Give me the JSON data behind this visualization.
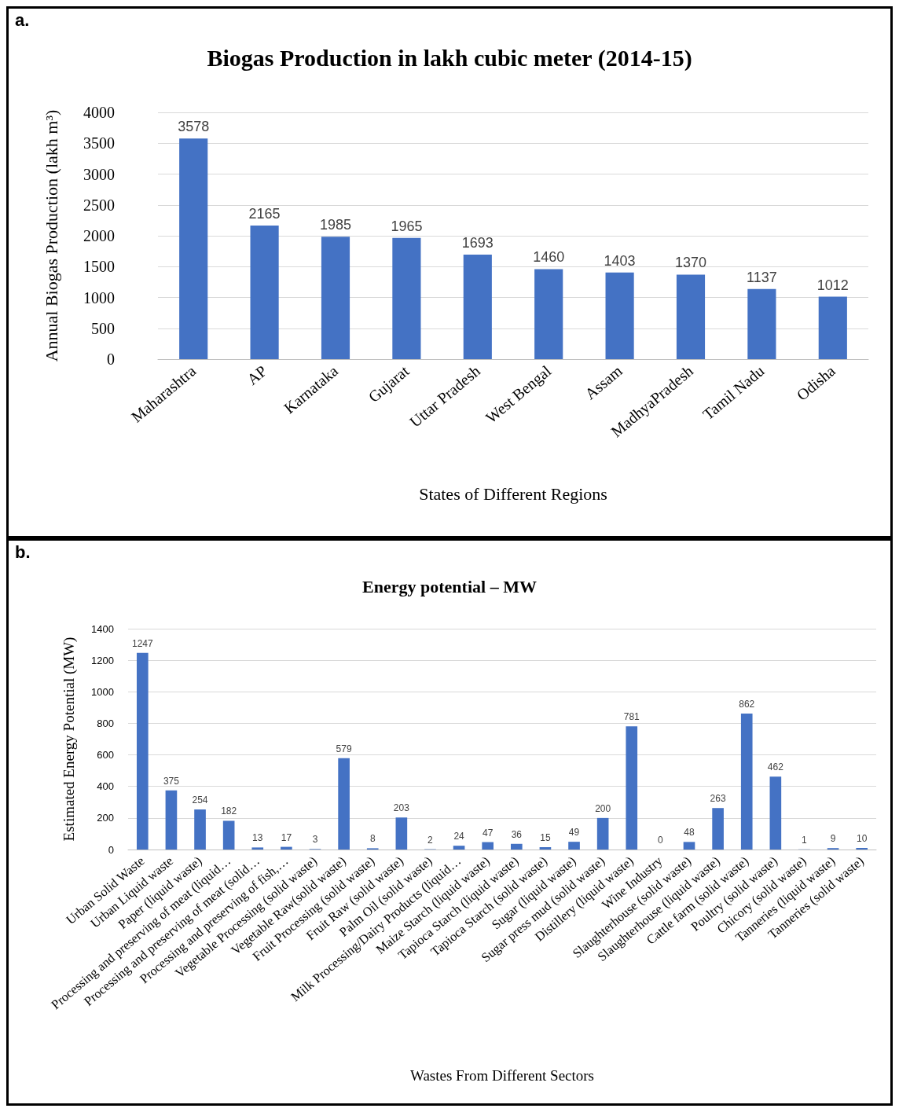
{
  "chart_data": [
    {
      "type": "bar",
      "title": "Biogas Production in lakh cubic meter (2014-15)",
      "ylabel": "Annual Biogas Production (lakh m³)",
      "xlabel": "States of Different Regions",
      "annotations": [
        "a."
      ],
      "categories": [
        "Maharashtra",
        "AP",
        "Karnataka",
        "Gujarat",
        "Uttar Pradesh",
        "West Bengal",
        "Assam",
        "MadhyaPradesh",
        "Tamil Nadu",
        "Odisha"
      ],
      "values": [
        3578,
        2165,
        1985,
        1965,
        1693,
        1460,
        1403,
        1370,
        1137,
        1012
      ],
      "color": "#4472c4",
      "data_labels": true,
      "ylim": [
        0,
        4000
      ],
      "yticks": [
        0,
        500,
        1000,
        1500,
        2000,
        2500,
        3000,
        3500,
        4000
      ],
      "grid": "y"
    },
    {
      "type": "bar",
      "title": "Energy potential – MW",
      "ylabel": "Estimated Energy Potential (MW)",
      "xlabel": "Wastes From Different Sectors",
      "annotations": [
        "b."
      ],
      "categories": [
        "Urban Solid Waste",
        "Urban Liquid waste",
        "Paper (liquid waste)",
        "Processing and preserving of meat (liquid…",
        "Processing and preserving of meat (solid…",
        "Processing and preserving of fish,…",
        "Vegetable Processing (solid waste)",
        "Vegetable Raw(solid waste)",
        "Fruit Processing (solid waste)",
        "Fruit Raw (solid waste)",
        "Palm Oil (solid waste)",
        "Milk Processing/Dairy Products (liquid…",
        "Maize Starch (liquid waste)",
        "Tapioca Starch (liquid waste)",
        "Tapioca Starch (solid waste)",
        "Sugar (liquid waste)",
        "Sugar press mud (solid waste)",
        "Distillery (liquid waste)",
        "Wine Industry",
        "Slaughterhouse (solid waste)",
        "Slaughterhouse (liquid waste)",
        "Cattle farm (solid waste)",
        "Poultry (solid waste)",
        "Chicory (solid waste)",
        "Tanneries (liquid waste)",
        "Tanneries (solid waste)"
      ],
      "values": [
        1247,
        375,
        254,
        182,
        13,
        17,
        3,
        579,
        8,
        203,
        2,
        24,
        47,
        36,
        15,
        49,
        200,
        781,
        0,
        48,
        263,
        862,
        462,
        1,
        9,
        10
      ],
      "color": "#4472c4",
      "data_labels": true,
      "ylim": [
        0,
        1400
      ],
      "yticks": [
        0,
        200,
        400,
        600,
        800,
        1000,
        1200,
        1400
      ],
      "grid": "y"
    }
  ]
}
